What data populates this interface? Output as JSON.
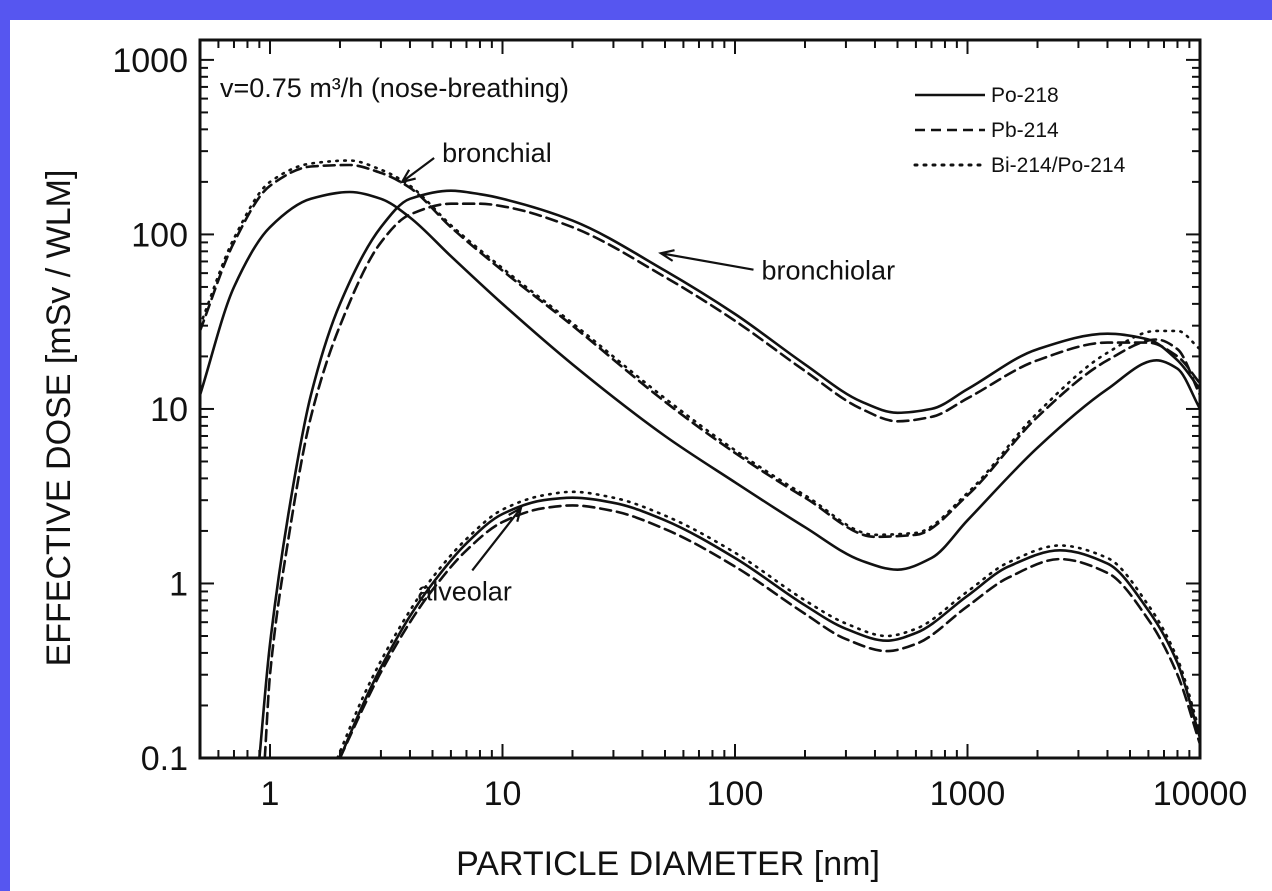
{
  "chart_data": {
    "type": "line",
    "title": "v=0.75 m³/h  (nose-breathing)",
    "xlabel": "PARTICLE  DIAMETER [nm]",
    "ylabel": "EFFECTIVE  DOSE  [mSv / WLM]",
    "xscale": "log",
    "yscale": "log",
    "xlim": [
      0.5,
      10000
    ],
    "ylim": [
      0.1,
      1300
    ],
    "xticks": [
      {
        "value": 1,
        "label": "1"
      },
      {
        "value": 10,
        "label": "10"
      },
      {
        "value": 100,
        "label": "100"
      },
      {
        "value": 1000,
        "label": "1000"
      },
      {
        "value": 10000,
        "label": "10000"
      }
    ],
    "yticks": [
      {
        "value": 0.1,
        "label": "0.1"
      },
      {
        "value": 1,
        "label": "1"
      },
      {
        "value": 10,
        "label": "10"
      },
      {
        "value": 100,
        "label": "100"
      },
      {
        "value": 1000,
        "label": "1000"
      }
    ],
    "legend": {
      "position": "top-right",
      "entries": [
        {
          "label": "Po-218",
          "style": "solid"
        },
        {
          "label": "Pb-214",
          "style": "dashed"
        },
        {
          "label": "Bi-214/Po-214",
          "style": "dotted"
        }
      ]
    },
    "annotations": [
      {
        "text": "bronchial",
        "x": 5.5,
        "y": 260,
        "arrow_to": [
          3.7,
          200
        ]
      },
      {
        "text": "bronchiolar",
        "x": 130,
        "y": 55,
        "arrow_to": [
          48,
          78
        ]
      },
      {
        "text": "alveolar",
        "x": 4.3,
        "y": 0.8,
        "arrow_to": [
          12,
          2.7
        ]
      }
    ],
    "series": [
      {
        "name": "Po-218",
        "region": "bronchial",
        "style": "solid",
        "x": [
          0.5,
          0.7,
          1,
          1.5,
          2.2,
          3,
          4,
          6,
          10,
          20,
          50,
          100,
          200,
          350,
          500,
          700,
          1000,
          2000,
          4000,
          6500,
          8000,
          10000
        ],
        "y": [
          12,
          50,
          110,
          160,
          175,
          160,
          125,
          75,
          40,
          18,
          7,
          3.8,
          2.1,
          1.35,
          1.2,
          1.4,
          2.3,
          6,
          13,
          19,
          17,
          10
        ]
      },
      {
        "name": "Pb-214",
        "region": "bronchial",
        "style": "dashed",
        "x": [
          0.5,
          0.7,
          1,
          1.5,
          2.2,
          3,
          4,
          6,
          10,
          20,
          50,
          100,
          200,
          400,
          600,
          1000,
          2000,
          4000,
          6500,
          8000,
          10000
        ],
        "y": [
          28,
          90,
          190,
          245,
          250,
          225,
          185,
          110,
          62,
          30,
          11,
          5.6,
          3.1,
          1.85,
          1.9,
          3.2,
          9,
          19,
          25,
          22,
          12
        ]
      },
      {
        "name": "Bi-214/Po-214",
        "region": "bronchial",
        "style": "dotted",
        "x": [
          0.5,
          0.7,
          1,
          1.5,
          2.2,
          3,
          4,
          6,
          10,
          20,
          50,
          100,
          200,
          400,
          600,
          1000,
          2000,
          4000,
          6500,
          8000,
          10000
        ],
        "y": [
          30,
          95,
          200,
          255,
          265,
          235,
          190,
          113,
          64,
          31,
          11.5,
          5.8,
          3.2,
          1.9,
          1.95,
          3.3,
          9.5,
          21,
          28,
          28,
          22
        ]
      },
      {
        "name": "Po-218",
        "region": "bronchiolar",
        "style": "solid",
        "x": [
          0.9,
          1,
          1.2,
          1.5,
          2,
          3,
          4,
          6,
          8,
          10,
          20,
          50,
          100,
          200,
          350,
          500,
          700,
          1000,
          2000,
          4000,
          6000,
          8000,
          10000
        ],
        "y": [
          0.1,
          0.45,
          2.5,
          12,
          40,
          110,
          160,
          178,
          170,
          160,
          120,
          62,
          35,
          18,
          11,
          9.5,
          10,
          13,
          22,
          27,
          25,
          19,
          13
        ]
      },
      {
        "name": "Pb-214",
        "region": "bronchiolar",
        "style": "dashed",
        "x": [
          0.95,
          1,
          1.2,
          1.5,
          2,
          3,
          4,
          6,
          8,
          10,
          20,
          50,
          100,
          200,
          350,
          500,
          700,
          1000,
          2000,
          4000,
          6000,
          8000,
          10000
        ],
        "y": [
          0.1,
          0.3,
          1.8,
          9,
          30,
          90,
          130,
          150,
          150,
          145,
          110,
          57,
          32,
          16.5,
          10,
          8.5,
          9,
          11.5,
          19,
          24,
          24,
          20,
          14
        ]
      },
      {
        "name": "Po-218",
        "region": "alveolar",
        "style": "solid",
        "x": [
          2,
          2.5,
          3,
          4,
          5,
          7,
          10,
          15,
          20,
          30,
          50,
          100,
          200,
          300,
          450,
          600,
          1000,
          1500,
          2500,
          4000,
          6000,
          8000,
          10000
        ],
        "y": [
          0.1,
          0.2,
          0.33,
          0.65,
          1.0,
          1.7,
          2.5,
          3.0,
          3.1,
          2.9,
          2.3,
          1.4,
          0.75,
          0.55,
          0.47,
          0.52,
          0.85,
          1.25,
          1.55,
          1.3,
          0.7,
          0.35,
          0.13
        ]
      },
      {
        "name": "Pb-214",
        "region": "alveolar",
        "style": "dashed",
        "x": [
          2,
          2.5,
          3,
          4,
          5,
          7,
          10,
          15,
          20,
          30,
          50,
          100,
          200,
          300,
          450,
          600,
          1000,
          1500,
          2500,
          4000,
          6000,
          8000,
          10000
        ],
        "y": [
          0.1,
          0.19,
          0.31,
          0.6,
          0.92,
          1.55,
          2.25,
          2.7,
          2.8,
          2.6,
          2.05,
          1.25,
          0.67,
          0.48,
          0.41,
          0.45,
          0.74,
          1.08,
          1.38,
          1.15,
          0.62,
          0.3,
          0.12
        ]
      },
      {
        "name": "Bi-214/Po-214",
        "region": "alveolar",
        "style": "dotted",
        "x": [
          1.95,
          2.5,
          3,
          4,
          5,
          7,
          10,
          15,
          20,
          30,
          50,
          100,
          200,
          300,
          450,
          600,
          1000,
          1500,
          2500,
          4000,
          6000,
          8000,
          10000
        ],
        "y": [
          0.1,
          0.22,
          0.36,
          0.7,
          1.08,
          1.8,
          2.65,
          3.2,
          3.35,
          3.1,
          2.45,
          1.5,
          0.8,
          0.59,
          0.5,
          0.55,
          0.9,
          1.32,
          1.65,
          1.4,
          0.75,
          0.37,
          0.14
        ]
      }
    ]
  }
}
